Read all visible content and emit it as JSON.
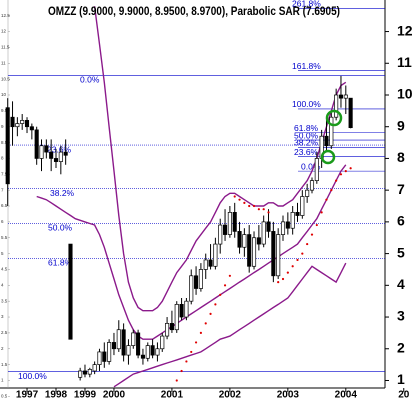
{
  "chart_data": {
    "type": "candlestick",
    "title": "OMZZ (9.9000, 9.9000, 8.9500, 8.9700), Parabolic SAR (7.6905)",
    "categories": [
      null,
      null,
      null,
      null,
      "1997",
      null,
      null,
      null,
      null,
      null,
      "1998",
      null,
      null,
      null,
      null,
      null,
      "1999",
      null,
      null,
      null,
      null,
      null,
      "2000",
      null,
      null,
      null,
      null,
      null,
      null,
      null,
      null,
      null,
      null,
      null,
      "2001",
      null,
      null,
      null,
      null,
      null,
      null,
      null,
      null,
      null,
      null,
      null,
      "2002",
      null,
      null,
      null,
      null,
      null,
      null,
      null,
      null,
      null,
      null,
      null,
      "2003",
      null,
      null,
      null,
      null,
      null,
      null,
      null,
      null,
      null,
      null,
      null,
      "2004",
      null,
      null,
      null,
      null,
      null,
      null,
      null,
      null,
      null,
      null,
      null,
      "20"
    ],
    "open": [
      9.6,
      9.3,
      9.0,
      9.1,
      9.2,
      9.0,
      8.9,
      8.0,
      8.4,
      8.2,
      8.0,
      7.9,
      8.2,
      5.3,
      null,
      1.1,
      1.3,
      1.2,
      1.3,
      1.5,
      1.9,
      1.6,
      2.2,
      2.0,
      2.6,
      1.8,
      2.1,
      2.5,
      1.8,
      1.7,
      2.1,
      1.8,
      2.0,
      2.4,
      2.8,
      2.6,
      3.4,
      3.0,
      3.5,
      4.3,
      3.9,
      4.5,
      4.8,
      4.6,
      5.3,
      5.9,
      5.6,
      6.3,
      5.7,
      5.2,
      5.6,
      4.6,
      5.5,
      5.3,
      6.0,
      5.7,
      4.3,
      5.6,
      6.0,
      5.8,
      6.3,
      6.2,
      6.8,
      7.0,
      7.3,
      8.0,
      8.7,
      8.4,
      9.3,
      10.0,
      9.9,
      9.9,
      null,
      null,
      null,
      null,
      null,
      null,
      null,
      null,
      null,
      null,
      null
    ],
    "high": [
      9.9,
      9.8,
      9.3,
      9.4,
      9.3,
      9.1,
      9.0,
      8.6,
      8.6,
      8.6,
      8.3,
      8.4,
      8.6,
      5.3,
      null,
      1.4,
      1.5,
      1.4,
      1.6,
      2.0,
      2.2,
      2.3,
      2.5,
      2.9,
      2.8,
      2.3,
      2.6,
      2.6,
      2.0,
      2.2,
      2.3,
      2.2,
      2.5,
      3.0,
      3.2,
      3.5,
      3.6,
      3.6,
      4.5,
      4.6,
      4.7,
      5.0,
      5.3,
      5.5,
      6.1,
      6.4,
      6.5,
      6.6,
      6.0,
      5.8,
      5.9,
      5.7,
      5.9,
      6.2,
      6.4,
      6.0,
      5.8,
      6.2,
      6.3,
      6.5,
      6.6,
      7.0,
      7.2,
      7.4,
      8.2,
      8.9,
      9.3,
      9.5,
      10.2,
      10.6,
      10.3,
      9.9,
      null,
      null,
      null,
      null,
      null,
      null,
      null,
      null,
      null,
      null,
      null
    ],
    "low": [
      6.5,
      8.4,
      8.7,
      8.9,
      8.8,
      8.6,
      7.8,
      7.6,
      8.0,
      7.6,
      7.7,
      7.5,
      7.8,
      2.3,
      null,
      1.0,
      1.1,
      1.1,
      1.2,
      1.3,
      1.4,
      1.5,
      1.8,
      1.9,
      1.6,
      1.5,
      2.0,
      1.7,
      1.5,
      1.6,
      1.7,
      1.6,
      1.9,
      2.3,
      2.5,
      2.5,
      2.9,
      2.9,
      3.4,
      3.7,
      3.8,
      4.2,
      4.5,
      4.5,
      5.0,
      5.4,
      5.5,
      5.5,
      5.0,
      4.9,
      4.4,
      4.5,
      5.1,
      5.2,
      5.5,
      4.1,
      4.2,
      5.4,
      5.6,
      5.6,
      6.0,
      6.1,
      6.6,
      6.9,
      7.2,
      7.7,
      8.2,
      8.3,
      9.2,
      9.6,
      9.4,
      8.95,
      null,
      null,
      null,
      null,
      null,
      null,
      null,
      null,
      null,
      null,
      null
    ],
    "close": [
      7.2,
      9.0,
      9.1,
      9.2,
      9.0,
      8.9,
      8.0,
      8.4,
      8.2,
      8.0,
      7.9,
      8.2,
      8.1,
      2.3,
      null,
      1.3,
      1.2,
      1.35,
      1.5,
      1.9,
      1.6,
      2.2,
      2.0,
      2.6,
      1.8,
      2.1,
      2.5,
      1.8,
      1.7,
      2.1,
      1.8,
      2.0,
      2.4,
      2.8,
      2.6,
      3.4,
      3.0,
      3.5,
      4.3,
      3.9,
      4.5,
      4.8,
      4.6,
      5.3,
      5.9,
      5.6,
      6.3,
      5.7,
      5.2,
      5.6,
      4.6,
      5.5,
      5.3,
      6.0,
      5.7,
      4.3,
      5.6,
      6.0,
      5.8,
      6.3,
      6.2,
      6.8,
      7.0,
      7.3,
      8.0,
      8.7,
      8.4,
      9.3,
      10.0,
      9.9,
      10.0,
      8.97,
      null,
      null,
      null,
      null,
      null,
      null,
      null,
      null,
      null,
      null,
      null
    ],
    "series": [
      {
        "color": "#8b1a8b",
        "values": [
          null,
          null,
          null,
          null,
          null,
          null,
          null,
          null,
          null,
          null,
          null,
          null,
          null,
          null,
          null,
          null,
          null,
          null,
          12.8,
          11.6,
          10.4,
          9.0,
          7.6,
          6.2,
          5.0,
          4.1,
          3.6,
          3.3,
          3.2,
          3.2,
          3.2,
          3.3,
          3.5,
          3.8,
          4.1,
          4.4,
          4.6,
          4.8,
          5.1,
          5.4,
          5.6,
          5.8,
          6.0,
          6.3,
          6.6,
          6.8,
          6.9,
          6.9,
          6.8,
          6.7,
          6.6,
          6.5,
          6.5,
          6.5,
          6.6,
          6.6,
          6.5,
          6.5,
          6.6,
          6.7,
          6.9,
          7.1,
          7.3,
          7.6,
          8.0,
          8.5,
          9.0,
          9.5,
          10.0,
          10.3,
          10.4,
          null,
          null,
          null,
          null,
          null,
          null,
          null,
          null,
          null,
          null,
          null,
          null
        ]
      },
      {
        "color": "#8b1a8b",
        "values": [
          null,
          null,
          null,
          null,
          null,
          null,
          6.8,
          6.75,
          6.7,
          6.6,
          6.5,
          6.4,
          6.3,
          6.2,
          6.1,
          6.05,
          6.0,
          5.95,
          5.9,
          5.6,
          5.2,
          4.7,
          4.2,
          3.7,
          3.3,
          2.9,
          2.6,
          2.4,
          2.3,
          2.3,
          2.3,
          2.4,
          2.5,
          2.6,
          2.7,
          2.8,
          2.9,
          3.0,
          3.1,
          3.2,
          3.3,
          3.4,
          3.5,
          3.6,
          3.7,
          3.8,
          3.9,
          4.0,
          4.1,
          4.2,
          4.3,
          4.4,
          4.5,
          4.6,
          4.7,
          4.8,
          4.9,
          5.0,
          5.1,
          5.2,
          5.3,
          5.5,
          5.7,
          5.9,
          6.1,
          6.4,
          6.7,
          7.0,
          7.3,
          7.6,
          7.8,
          null,
          null,
          null,
          null,
          null,
          null,
          null,
          null,
          null,
          null,
          null,
          null
        ]
      },
      {
        "color": "#8b1a8b",
        "values": [
          null,
          null,
          null,
          null,
          null,
          null,
          null,
          null,
          null,
          null,
          null,
          null,
          null,
          null,
          null,
          null,
          null,
          null,
          null,
          null,
          null,
          null,
          0.8,
          0.9,
          1.0,
          1.1,
          1.2,
          1.25,
          1.3,
          1.35,
          1.4,
          1.45,
          1.5,
          1.55,
          1.6,
          1.65,
          1.7,
          1.75,
          1.8,
          1.85,
          1.9,
          2.0,
          2.1,
          2.2,
          2.3,
          2.35,
          2.4,
          2.5,
          2.6,
          2.7,
          2.8,
          2.9,
          3.0,
          3.1,
          3.2,
          3.3,
          3.4,
          3.5,
          3.6,
          3.8,
          4.0,
          4.2,
          4.4,
          4.6,
          4.5,
          4.4,
          4.3,
          4.2,
          4.1,
          4.4,
          4.7,
          null,
          null,
          null,
          null,
          null,
          null,
          null,
          null,
          null,
          null,
          null,
          null
        ]
      }
    ],
    "sar": {
      "color": "#e00000",
      "values": [
        null,
        null,
        null,
        null,
        null,
        null,
        null,
        null,
        null,
        null,
        null,
        null,
        null,
        null,
        null,
        null,
        null,
        null,
        null,
        null,
        null,
        null,
        null,
        null,
        null,
        null,
        null,
        null,
        null,
        null,
        null,
        null,
        null,
        null,
        null,
        1.0,
        1.3,
        1.6,
        1.9,
        2.2,
        2.5,
        2.8,
        3.1,
        3.4,
        3.7,
        4.0,
        4.3,
        6.8,
        6.7,
        6.6,
        6.5,
        6.5,
        6.4,
        6.4,
        6.3,
        null,
        4.1,
        4.2,
        4.4,
        4.6,
        4.8,
        5.0,
        5.3,
        5.6,
        5.9,
        6.3,
        6.7,
        7.0,
        7.3,
        7.5,
        7.6,
        7.6905,
        null,
        null,
        null,
        null,
        null,
        null,
        null,
        null,
        null,
        null,
        null
      ]
    },
    "fib_color": "#0000cc",
    "fib_left": [
      {
        "text": "0.0%",
        "y": 10.62
      },
      {
        "text": "23.6%",
        "y": 8.42
      },
      {
        "text": "38.2%",
        "y": 7.05
      },
      {
        "text": "50.0%",
        "y": 5.95
      },
      {
        "text": "61.8%",
        "y": 4.85
      },
      {
        "text": "100.0%",
        "y": 1.28
      }
    ],
    "fib_right": [
      {
        "text": "261.8%",
        "y": 12.73
      },
      {
        "text": "161.8%",
        "y": 10.77
      },
      {
        "text": "100.0%",
        "y": 9.56
      },
      {
        "text": "61.8%",
        "y": 8.81
      },
      {
        "text": "50.0%",
        "y": 8.58
      },
      {
        "text": "38.2%",
        "y": 8.35
      },
      {
        "text": "23.6%",
        "y": 8.06
      },
      {
        "text": "0.0%",
        "y": 7.6
      }
    ],
    "ylim": [
      0.7,
      12.9
    ],
    "yticks": [
      1,
      2,
      3,
      4,
      5,
      6,
      7,
      8,
      9,
      10,
      11,
      12
    ],
    "y2lim": [
      0.7,
      12.9
    ],
    "y2ticks": [
      0.5,
      1,
      1.5,
      2,
      2.5,
      3,
      3.5,
      4,
      4.5,
      5,
      5.5,
      6,
      6.5,
      7,
      7.5,
      8,
      8.5,
      9,
      9.5,
      10,
      10.5,
      11,
      11.5,
      12,
      12.5
    ]
  }
}
